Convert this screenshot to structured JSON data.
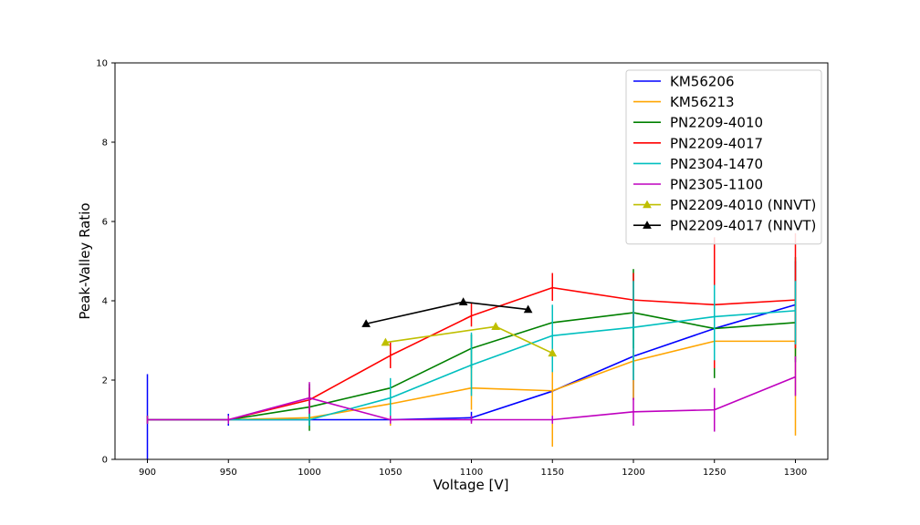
{
  "chart_data": {
    "type": "line",
    "title": "",
    "xlabel": "Voltage [V]",
    "ylabel": "Peak-Valley Ratio",
    "xlim": [
      880,
      1320
    ],
    "ylim": [
      0,
      10
    ],
    "xticks": [
      900,
      950,
      1000,
      1050,
      1100,
      1150,
      1200,
      1250,
      1300
    ],
    "yticks": [
      0,
      2,
      4,
      6,
      8,
      10
    ],
    "grid": false,
    "legend_position": "top-right",
    "series": [
      {
        "name": "KM56206",
        "color": "#0000ff",
        "marker": "none",
        "x": [
          900,
          950,
          1000,
          1050,
          1100,
          1150,
          1200,
          1250,
          1300
        ],
        "y": [
          1.0,
          1.0,
          1.0,
          1.0,
          1.05,
          1.72,
          2.6,
          3.3,
          3.9
        ],
        "yerr_low": [
          0.0,
          0.85,
          0.85,
          0.85,
          0.95,
          1.1,
          1.5,
          2.3,
          2.9
        ],
        "yerr_high": [
          2.15,
          1.15,
          1.15,
          1.05,
          1.2,
          2.3,
          3.7,
          4.3,
          5.0
        ]
      },
      {
        "name": "KM56213",
        "color": "#ffa500",
        "marker": "none",
        "x": [
          900,
          950,
          1000,
          1050,
          1100,
          1150,
          1200,
          1250,
          1300
        ],
        "y": [
          1.0,
          1.0,
          1.05,
          1.4,
          1.8,
          1.73,
          2.48,
          2.98,
          2.98
        ],
        "yerr_low": [
          0.9,
          0.9,
          0.9,
          0.85,
          1.25,
          0.32,
          1.5,
          2.15,
          0.6
        ],
        "yerr_high": [
          1.1,
          1.1,
          1.2,
          1.6,
          2.4,
          3.0,
          3.3,
          4.0,
          4.3
        ]
      },
      {
        "name": "PN2209-4010",
        "color": "#008000",
        "marker": "none",
        "x": [
          900,
          950,
          1000,
          1050,
          1100,
          1150,
          1200,
          1250,
          1300
        ],
        "y": [
          1.0,
          1.0,
          1.32,
          1.8,
          2.8,
          3.45,
          3.7,
          3.3,
          3.45
        ],
        "yerr_low": [
          0.9,
          0.9,
          0.72,
          1.55,
          2.3,
          2.9,
          2.8,
          2.05,
          2.45
        ],
        "yerr_high": [
          1.1,
          1.1,
          1.9,
          2.0,
          3.15,
          3.85,
          4.8,
          4.4,
          5.1
        ]
      },
      {
        "name": "PN2209-4017",
        "color": "#ff0000",
        "marker": "none",
        "x": [
          900,
          950,
          1000,
          1050,
          1100,
          1150,
          1200,
          1250,
          1300
        ],
        "y": [
          1.0,
          1.0,
          1.5,
          2.62,
          3.62,
          4.33,
          4.02,
          3.9,
          4.02
        ],
        "yerr_low": [
          0.9,
          0.9,
          1.2,
          2.3,
          3.35,
          4.0,
          3.4,
          2.3,
          2.8
        ],
        "yerr_high": [
          1.1,
          1.1,
          1.8,
          2.95,
          3.95,
          4.7,
          4.7,
          5.6,
          5.7
        ]
      },
      {
        "name": "PN2304-1470",
        "color": "#00bfbf",
        "marker": "none",
        "x": [
          900,
          950,
          1000,
          1050,
          1100,
          1150,
          1200,
          1250,
          1300
        ],
        "y": [
          1.0,
          1.0,
          1.0,
          1.55,
          2.38,
          3.12,
          3.33,
          3.6,
          3.75
        ],
        "yerr_low": [
          0.9,
          0.9,
          0.85,
          1.1,
          1.6,
          2.2,
          2.0,
          2.5,
          2.9
        ],
        "yerr_high": [
          1.1,
          1.1,
          1.15,
          2.05,
          3.2,
          3.9,
          4.5,
          4.4,
          4.5
        ]
      },
      {
        "name": "PN2305-1100",
        "color": "#bf00bf",
        "marker": "none",
        "x": [
          900,
          950,
          1000,
          1050,
          1100,
          1150,
          1200,
          1250,
          1300
        ],
        "y": [
          1.0,
          1.0,
          1.55,
          1.0,
          1.0,
          1.0,
          1.2,
          1.25,
          2.08
        ],
        "yerr_low": [
          0.9,
          0.9,
          1.15,
          0.9,
          0.9,
          0.9,
          0.85,
          0.7,
          1.6
        ],
        "yerr_high": [
          1.1,
          1.1,
          1.95,
          1.1,
          1.1,
          1.1,
          1.55,
          1.8,
          2.6
        ]
      },
      {
        "name": "PN2209-4010 (NNVT)",
        "color": "#bfbf00",
        "marker": "triangle",
        "x": [
          1047,
          1115,
          1150
        ],
        "y": [
          2.95,
          3.35,
          2.68
        ]
      },
      {
        "name": "PN2209-4017 (NNVT)",
        "color": "#000000",
        "marker": "triangle",
        "x": [
          1035,
          1095,
          1135
        ],
        "y": [
          3.42,
          3.97,
          3.78
        ]
      }
    ]
  }
}
